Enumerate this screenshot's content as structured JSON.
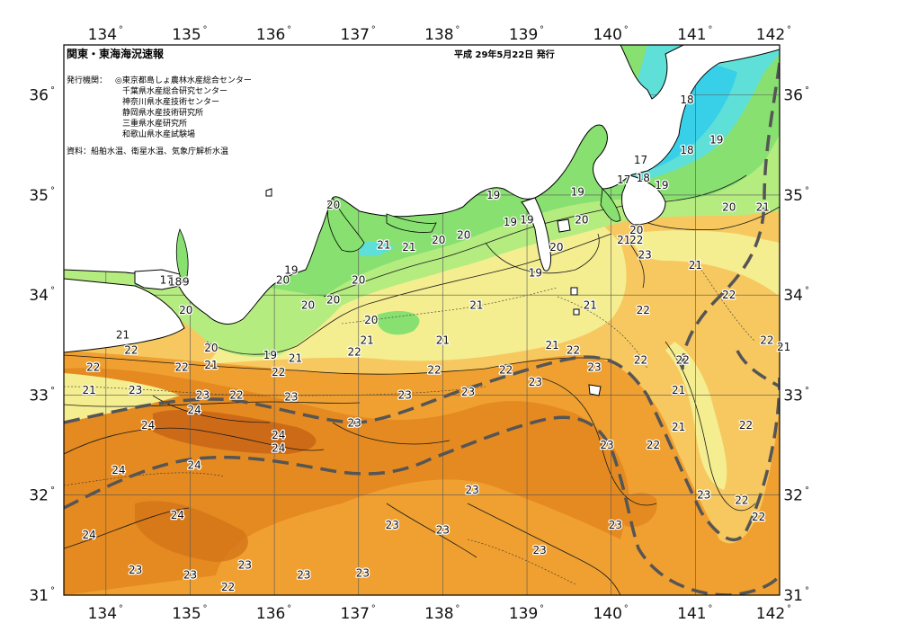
{
  "header": {
    "title": "関東・東海海況速報",
    "issue_date": "平成 29年5月22日 発行"
  },
  "issuers": {
    "label": "発行機関：",
    "agencies": [
      "◎東京都島しょ農林水産総合センター",
      "千葉県水産総合研究センター",
      "神奈川県水産技術センター",
      "静岡県水産技術研究所",
      "三重県水産研究所",
      "和歌山県水産試験場"
    ]
  },
  "source_note": "資料：船舶水温、衛星水温、気象庁解析水温",
  "axes": {
    "lon_labels": [
      "134",
      "135",
      "136",
      "137",
      "138",
      "139",
      "140",
      "141",
      "142"
    ],
    "lat_labels": [
      "36",
      "35",
      "34",
      "33",
      "32",
      "31"
    ],
    "degree_symbol": "°"
  },
  "map_extent": {
    "lon_min": 133.5,
    "lon_max": 142,
    "lat_min": 31,
    "lat_max": 36.5
  },
  "colors": {
    "c17": "#38d0e8",
    "c18": "#5ee0d8",
    "c19": "#88e070",
    "c20": "#b4ec80",
    "c21": "#f4ee90",
    "c22": "#f7c860",
    "c23": "#f0a030",
    "c24": "#e48a20",
    "c25": "#c86418",
    "land": "#ffffff",
    "kuroshio_axis": "#555555"
  },
  "sst_labels": [
    {
      "v": "18",
      "lon": 140.9,
      "lat": 35.95
    },
    {
      "v": "18",
      "lon": 140.9,
      "lat": 35.45
    },
    {
      "v": "19",
      "lon": 141.25,
      "lat": 35.55
    },
    {
      "v": "17",
      "lon": 140.35,
      "lat": 35.35
    },
    {
      "v": "17",
      "lon": 140.15,
      "lat": 35.15
    },
    {
      "v": "18",
      "lon": 140.38,
      "lat": 35.17
    },
    {
      "v": "19",
      "lon": 140.6,
      "lat": 35.1
    },
    {
      "v": "19",
      "lon": 138.6,
      "lat": 35.0
    },
    {
      "v": "19",
      "lon": 139.6,
      "lat": 35.03
    },
    {
      "v": "20",
      "lon": 139.65,
      "lat": 34.75
    },
    {
      "v": "19",
      "lon": 138.8,
      "lat": 34.73
    },
    {
      "v": "19",
      "lon": 139.0,
      "lat": 34.75
    },
    {
      "v": "20",
      "lon": 136.7,
      "lat": 34.9
    },
    {
      "v": "20",
      "lon": 137.95,
      "lat": 34.55
    },
    {
      "v": "20",
      "lon": 138.25,
      "lat": 34.6
    },
    {
      "v": "21",
      "lon": 137.3,
      "lat": 34.5
    },
    {
      "v": "21",
      "lon": 137.6,
      "lat": 34.48
    },
    {
      "v": "20",
      "lon": 140.3,
      "lat": 34.65
    },
    {
      "v": "21",
      "lon": 140.15,
      "lat": 34.55
    },
    {
      "v": "22",
      "lon": 140.3,
      "lat": 34.55
    },
    {
      "v": "23",
      "lon": 140.4,
      "lat": 34.4
    },
    {
      "v": "20",
      "lon": 139.35,
      "lat": 34.48
    },
    {
      "v": "19",
      "lon": 139.1,
      "lat": 34.22
    },
    {
      "v": "21",
      "lon": 141.0,
      "lat": 34.3
    },
    {
      "v": "21",
      "lon": 141.8,
      "lat": 34.88
    },
    {
      "v": "20",
      "lon": 141.4,
      "lat": 34.88
    },
    {
      "v": "20",
      "lon": 137.0,
      "lat": 34.15
    },
    {
      "v": "20",
      "lon": 136.7,
      "lat": 33.95
    },
    {
      "v": "20",
      "lon": 136.1,
      "lat": 34.15
    },
    {
      "v": "19",
      "lon": 136.2,
      "lat": 34.25
    },
    {
      "v": "17",
      "lon": 134.72,
      "lat": 34.15
    },
    {
      "v": "18",
      "lon": 134.82,
      "lat": 34.13
    },
    {
      "v": "9",
      "lon": 134.95,
      "lat": 34.13
    },
    {
      "v": "20",
      "lon": 134.95,
      "lat": 33.85
    },
    {
      "v": "20",
      "lon": 136.4,
      "lat": 33.9
    },
    {
      "v": "20",
      "lon": 137.15,
      "lat": 33.75
    },
    {
      "v": "21",
      "lon": 137.1,
      "lat": 33.55
    },
    {
      "v": "21",
      "lon": 138.4,
      "lat": 33.9
    },
    {
      "v": "21",
      "lon": 139.75,
      "lat": 33.9
    },
    {
      "v": "22",
      "lon": 140.38,
      "lat": 33.85
    },
    {
      "v": "22",
      "lon": 141.4,
      "lat": 34.0
    },
    {
      "v": "22",
      "lon": 141.85,
      "lat": 33.55
    },
    {
      "v": "21",
      "lon": 142.05,
      "lat": 33.48
    },
    {
      "v": "21",
      "lon": 138.0,
      "lat": 33.55
    },
    {
      "v": "21",
      "lon": 139.3,
      "lat": 33.5
    },
    {
      "v": "22",
      "lon": 139.55,
      "lat": 33.45
    },
    {
      "v": "21",
      "lon": 134.2,
      "lat": 33.6
    },
    {
      "v": "22",
      "lon": 134.3,
      "lat": 33.45
    },
    {
      "v": "20",
      "lon": 135.25,
      "lat": 33.47
    },
    {
      "v": "19",
      "lon": 135.95,
      "lat": 33.4
    },
    {
      "v": "21",
      "lon": 136.25,
      "lat": 33.37
    },
    {
      "v": "21",
      "lon": 135.25,
      "lat": 33.3
    },
    {
      "v": "22",
      "lon": 136.05,
      "lat": 33.23
    },
    {
      "v": "22",
      "lon": 136.95,
      "lat": 33.43
    },
    {
      "v": "22",
      "lon": 133.85,
      "lat": 33.28
    },
    {
      "v": "22",
      "lon": 134.9,
      "lat": 33.28
    },
    {
      "v": "22",
      "lon": 137.9,
      "lat": 33.25
    },
    {
      "v": "22",
      "lon": 138.75,
      "lat": 33.25
    },
    {
      "v": "23",
      "lon": 139.1,
      "lat": 33.13
    },
    {
      "v": "23",
      "lon": 139.8,
      "lat": 33.28
    },
    {
      "v": "22",
      "lon": 140.35,
      "lat": 33.35
    },
    {
      "v": "22",
      "lon": 140.85,
      "lat": 33.35
    },
    {
      "v": "21",
      "lon": 133.8,
      "lat": 33.05
    },
    {
      "v": "23",
      "lon": 134.35,
      "lat": 33.05
    },
    {
      "v": "23",
      "lon": 135.15,
      "lat": 33.0
    },
    {
      "v": "22",
      "lon": 135.55,
      "lat": 33.0
    },
    {
      "v": "23",
      "lon": 136.2,
      "lat": 32.98
    },
    {
      "v": "23",
      "lon": 137.55,
      "lat": 33.0
    },
    {
      "v": "23",
      "lon": 138.3,
      "lat": 33.03
    },
    {
      "v": "21",
      "lon": 140.8,
      "lat": 33.05
    },
    {
      "v": "24",
      "lon": 134.5,
      "lat": 32.7
    },
    {
      "v": "24",
      "lon": 135.05,
      "lat": 32.85
    },
    {
      "v": "24",
      "lon": 136.05,
      "lat": 32.6
    },
    {
      "v": "24",
      "lon": 136.05,
      "lat": 32.47
    },
    {
      "v": "23",
      "lon": 136.95,
      "lat": 32.72
    },
    {
      "v": "24",
      "lon": 134.15,
      "lat": 32.25
    },
    {
      "v": "24",
      "lon": 135.05,
      "lat": 32.3
    },
    {
      "v": "21",
      "lon": 140.8,
      "lat": 32.68
    },
    {
      "v": "22",
      "lon": 141.6,
      "lat": 32.7
    },
    {
      "v": "23",
      "lon": 139.95,
      "lat": 32.5
    },
    {
      "v": "22",
      "lon": 140.5,
      "lat": 32.5
    },
    {
      "v": "23",
      "lon": 138.35,
      "lat": 32.05
    },
    {
      "v": "23",
      "lon": 141.1,
      "lat": 32.0
    },
    {
      "v": "22",
      "lon": 141.55,
      "lat": 31.95
    },
    {
      "v": "22",
      "lon": 141.75,
      "lat": 31.78
    },
    {
      "v": "24",
      "lon": 134.85,
      "lat": 31.8
    },
    {
      "v": "24",
      "lon": 133.8,
      "lat": 31.6
    },
    {
      "v": "23",
      "lon": 137.4,
      "lat": 31.7
    },
    {
      "v": "23",
      "lon": 138.0,
      "lat": 31.65
    },
    {
      "v": "23",
      "lon": 139.15,
      "lat": 31.45
    },
    {
      "v": "23",
      "lon": 140.05,
      "lat": 31.7
    },
    {
      "v": "23",
      "lon": 134.35,
      "lat": 31.25
    },
    {
      "v": "23",
      "lon": 135.0,
      "lat": 31.2
    },
    {
      "v": "23",
      "lon": 135.65,
      "lat": 31.3
    },
    {
      "v": "23",
      "lon": 136.35,
      "lat": 31.2
    },
    {
      "v": "22",
      "lon": 135.45,
      "lat": 31.08
    },
    {
      "v": "23",
      "lon": 137.05,
      "lat": 31.22
    }
  ]
}
